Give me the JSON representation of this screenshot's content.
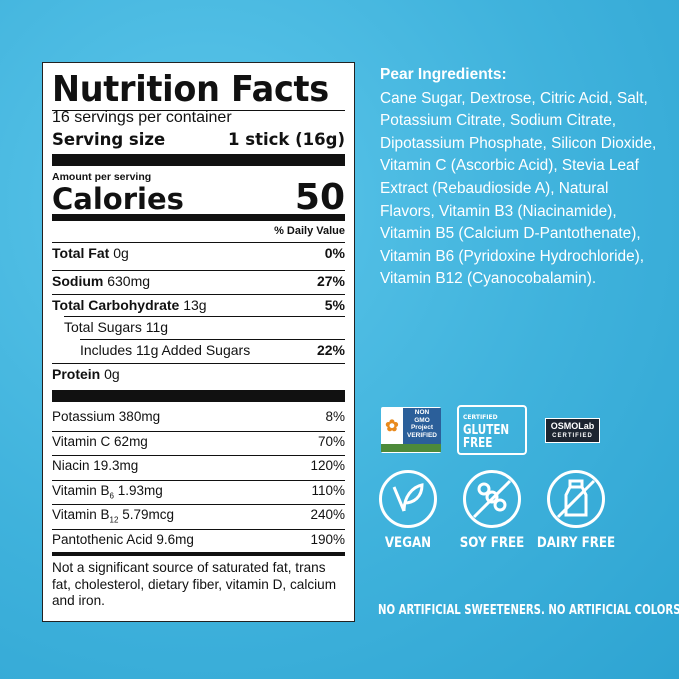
{
  "nutrition": {
    "title": "Nutrition Facts",
    "servings": "16 servings per container",
    "serving_size_label": "Serving size",
    "serving_size_value": "1 stick (16g)",
    "amount_per_serving": "Amount per serving",
    "calories_label": "Calories",
    "calories_value": "50",
    "daily_value_header": "% Daily Value",
    "rows": [
      {
        "name": "Total Fat",
        "amount": "0g",
        "dv": "0%"
      },
      {
        "name": "Sodium",
        "amount": "630mg",
        "dv": "27%"
      },
      {
        "name": "Total Carbohydrate",
        "amount": "13g",
        "dv": "5%"
      },
      {
        "name": "Total Sugars 11g",
        "amount": "",
        "dv": ""
      },
      {
        "name": "Includes 11g Added Sugars",
        "amount": "",
        "dv": "22%"
      },
      {
        "name": "Protein",
        "amount": "0g",
        "dv": ""
      }
    ],
    "micros": [
      {
        "name": "Potassium",
        "amount": "380mg",
        "dv": "8%"
      },
      {
        "name": "Vitamin C",
        "amount": "62mg",
        "dv": "70%"
      },
      {
        "name": "Niacin",
        "amount": "19.3mg",
        "dv": "120%"
      },
      {
        "name": "Vitamin B",
        "sub": "6",
        "amount": "1.93mg",
        "dv": "110%"
      },
      {
        "name": "Vitamin B",
        "sub": "12",
        "amount": "5.79mcg",
        "dv": "240%"
      },
      {
        "name": "Pantothenic Acid",
        "amount": "9.6mg",
        "dv": "190%"
      }
    ],
    "footnote": "Not a significant source of saturated fat, trans fat, cholesterol, dietary fiber, vitamin D, calcium and iron."
  },
  "ingredients": {
    "title": "Pear Ingredients:",
    "text": "Cane Sugar, Dextrose, Citric Acid, Salt, Potassium Citrate, Sodium Citrate, Dipotassium Phosphate, Silicon Dioxide, Vitamin C (Ascorbic Acid), Stevia Leaf Extract (Rebaudioside A), Natural Flavors, Vitamin B3 (Niacinamide), Vitamin B5 (Calcium D-Pantothenate), Vitamin B6 (Pyridoxine Hydrochloride), Vitamin B12 (Cyanocobalamin)."
  },
  "certifications": [
    {
      "name": "NON GMO Project VERIFIED",
      "url": "nongmoproject.org"
    },
    {
      "name": "CERTIFIED GLUTEN FREE",
      "url": "GFCO.ORG"
    },
    {
      "name": "OSMOLab CERTIFIED"
    }
  ],
  "claims": [
    {
      "label": "VEGAN",
      "icon": "leaf-icon"
    },
    {
      "label": "SOY FREE",
      "icon": "no-soy-icon"
    },
    {
      "label": "DAIRY FREE",
      "icon": "no-milk-icon"
    }
  ],
  "footer": "NO ARTIFICIAL SWEETENERS. NO ARTIFICIAL COLORS.",
  "colors": {
    "background": "#3fb2dc",
    "text_light": "#ffffff",
    "label_ink": "#111111"
  }
}
